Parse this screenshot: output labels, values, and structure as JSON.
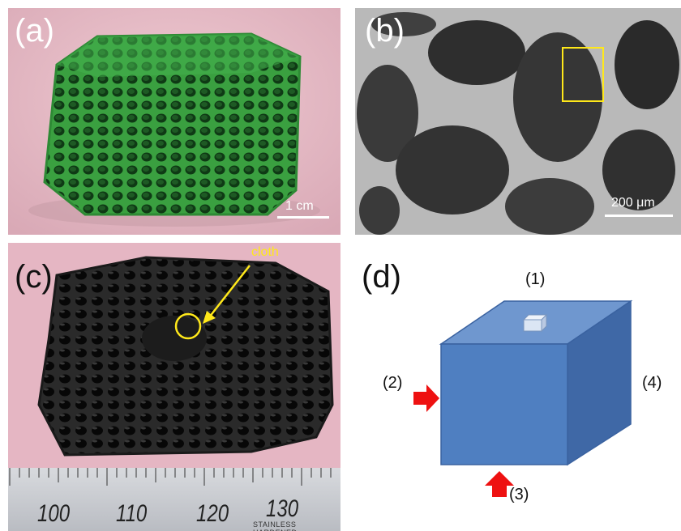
{
  "panels": {
    "a": {
      "label": "(a)",
      "scale": "1 cm"
    },
    "b": {
      "label": "(b)",
      "scale": "200 μm"
    },
    "c": {
      "label": "(c)",
      "annotation": "cloth",
      "ruler": {
        "numbers": [
          "100",
          "110",
          "120",
          "130"
        ],
        "brand": "STAINLESS HARDENED"
      }
    },
    "d": {
      "label": "(d)",
      "labels": {
        "top": "(1)",
        "left": "(2)",
        "bottom": "(3)",
        "right": "(4)"
      }
    }
  },
  "colors": {
    "foam_green": "#3aa040",
    "pink_background": "#e8bfc8",
    "cube_front": "#4f7fc1",
    "cube_top": "#6f97cf",
    "cube_side": "#3f68a6",
    "arrow": "#ee1111",
    "annotation_yellow": "#ffe81a"
  }
}
